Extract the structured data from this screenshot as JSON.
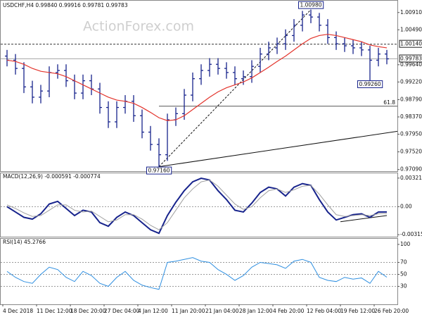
{
  "chart_data": [
    {
      "type": "ohlc",
      "title": "USDCHF,H4  0.99840 0.99916 0.99781 0.99783",
      "watermark": "ActionForex.com",
      "categories": [
        "4 Dec 2018",
        null,
        null,
        null,
        "11 Dec 12:00",
        null,
        null,
        null,
        "18 Dec 20:00",
        null,
        null,
        null,
        "27 Dec 04:00",
        null,
        null,
        null,
        "4 Jan 12:00",
        null,
        null,
        null,
        "11 Jan 20:00",
        null,
        null,
        null,
        "21 Jan 04:00",
        null,
        null,
        null,
        "28 Jan 12:00",
        null,
        null,
        null,
        "4 Feb 20:00",
        null,
        null,
        null,
        "12 Feb 04:00",
        null,
        null,
        null,
        "19 Feb 12:00",
        null,
        null,
        null,
        "26 Feb 20:00",
        null
      ],
      "open": [
        0.9985,
        0.9975,
        0.9955,
        0.991,
        0.9885,
        0.99,
        0.9945,
        0.995,
        0.9925,
        0.9895,
        0.9925,
        0.9905,
        0.986,
        0.9825,
        0.986,
        0.9875,
        0.984,
        0.98,
        0.977,
        0.9745,
        0.983,
        0.9845,
        0.989,
        0.993,
        0.995,
        0.9965,
        0.9955,
        0.9945,
        0.993,
        0.9935,
        0.996,
        0.999,
        1.0005,
        1.0015,
        1.0035,
        1.006,
        1.0085,
        1.008,
        1.006,
        1.003,
        1.0015,
        1.001,
        1.0005,
        1.0,
        0.9975,
        0.999
      ],
      "high": [
        1.0,
        0.999,
        0.997,
        0.9925,
        0.9915,
        0.996,
        0.9965,
        0.9965,
        0.994,
        0.994,
        0.994,
        0.992,
        0.9875,
        0.9875,
        0.989,
        0.989,
        0.9855,
        0.9815,
        0.9785,
        0.9845,
        0.986,
        0.9905,
        0.9945,
        0.9965,
        0.998,
        0.998,
        0.997,
        0.996,
        0.995,
        0.9975,
        1.0005,
        1.002,
        1.003,
        1.005,
        1.0075,
        1.0095,
        1.0098,
        1.009,
        1.0075,
        1.0045,
        1.003,
        1.0025,
        1.002,
        1.001,
        1.0005,
        1.0
      ],
      "low": [
        0.996,
        0.994,
        0.9895,
        0.987,
        0.987,
        0.9885,
        0.993,
        0.991,
        0.988,
        0.988,
        0.989,
        0.9845,
        0.981,
        0.981,
        0.9845,
        0.9825,
        0.9785,
        0.9755,
        0.9716,
        0.973,
        0.9815,
        0.983,
        0.9875,
        0.9915,
        0.9935,
        0.994,
        0.993,
        0.9915,
        0.9915,
        0.992,
        0.9945,
        0.9975,
        0.999,
        1.0,
        1.002,
        1.0045,
        1.0065,
        1.0045,
        1.0015,
        1.0,
        0.9995,
        0.999,
        0.9985,
        0.9926,
        0.996,
        0.9965
      ],
      "close": [
        0.9975,
        0.9955,
        0.991,
        0.9885,
        0.99,
        0.9945,
        0.995,
        0.9925,
        0.9895,
        0.9925,
        0.9905,
        0.986,
        0.9825,
        0.986,
        0.9875,
        0.984,
        0.98,
        0.977,
        0.9745,
        0.983,
        0.9845,
        0.989,
        0.993,
        0.995,
        0.9965,
        0.9955,
        0.9945,
        0.993,
        0.9935,
        0.996,
        0.999,
        1.0005,
        1.0015,
        1.0035,
        1.006,
        1.0085,
        1.008,
        1.006,
        1.003,
        1.0015,
        1.001,
        1.0005,
        1.0,
        0.9975,
        0.999,
        0.99783
      ],
      "color": "#17238c",
      "ma": {
        "color": "#e3342c",
        "values": [
          0.9975,
          0.9972,
          0.9965,
          0.9955,
          0.9948,
          0.9945,
          0.9942,
          0.9935,
          0.9925,
          0.9915,
          0.9905,
          0.9895,
          0.9885,
          0.9878,
          0.9875,
          0.987,
          0.986,
          0.9848,
          0.9835,
          0.9828,
          0.983,
          0.984,
          0.9855,
          0.987,
          0.9885,
          0.9898,
          0.9908,
          0.9915,
          0.9922,
          0.9932,
          0.9945,
          0.9958,
          0.9972,
          0.9985,
          1.0,
          1.0015,
          1.0028,
          1.0035,
          1.0038,
          1.0035,
          1.003,
          1.0025,
          1.002,
          1.0012,
          1.0008,
          1.0005
        ]
      },
      "ylim": [
        0.9705,
        1.0118
      ],
      "yticks": [
        {
          "value": 1.0091,
          "label": "1.00910"
        },
        {
          "value": 1.0049,
          "label": "1.00490"
        },
        {
          "value": 0.9964,
          "label": "0.99640"
        },
        {
          "value": 0.9922,
          "label": "0.99220"
        },
        {
          "value": 0.9879,
          "label": "0.98790"
        },
        {
          "value": 0.9837,
          "label": "0.98370"
        },
        {
          "value": 0.9795,
          "label": "0.97950"
        },
        {
          "value": 0.9752,
          "label": "0.97520"
        },
        {
          "value": 0.9709,
          "label": "0.97090"
        }
      ],
      "level": {
        "value": 1.0014,
        "label": "1.00140"
      },
      "last": {
        "value": 0.99783,
        "label": "0.99783"
      },
      "annotations": [
        {
          "x": 36,
          "value": 1.0098,
          "label": "1.00980"
        },
        {
          "x": 43,
          "value": 0.9926,
          "label": "0.99260"
        },
        {
          "x": 18,
          "value": 0.9716,
          "label": "0.97160"
        }
      ],
      "fib": {
        "label": 61.8,
        "value": 0.9863,
        "x": 18
      },
      "trendlines": [
        {
          "x": [
            18,
            36
          ],
          "y": [
            0.9716,
            1.0098
          ],
          "dashed": true
        },
        {
          "x": [
            18,
            46.5
          ],
          "y": [
            0.9716,
            0.9802
          ],
          "dashed": false
        }
      ]
    },
    {
      "type": "line",
      "title": "MACD(12,26,9) -0.000591 -0.000774",
      "series": [
        {
          "color": "#17238c",
          "width": 2,
          "values": [
            0.0,
            -0.0006,
            -0.0012,
            -0.0014,
            -0.0008,
            0.0003,
            0.0006,
            -0.0002,
            -0.001,
            -0.0004,
            -0.0006,
            -0.0018,
            -0.0022,
            -0.0012,
            -0.0006,
            -0.001,
            -0.0018,
            -0.0026,
            -0.003,
            -0.001,
            0.0005,
            0.0018,
            0.0028,
            0.0032,
            0.003,
            0.0018,
            0.0008,
            -0.0004,
            -0.0006,
            0.0004,
            0.0016,
            0.0022,
            0.002,
            0.0012,
            0.0022,
            0.0026,
            0.0024,
            0.0008,
            -0.0006,
            -0.0015,
            -0.0012,
            -0.0009,
            -0.0008,
            -0.0012,
            -0.0006,
            -0.000591
          ]
        },
        {
          "color": "#a0a0a0",
          "width": 1,
          "values": [
            0.0002,
            -0.0002,
            -0.0007,
            -0.0011,
            -0.001,
            -0.0004,
            0.0002,
            0.0002,
            -0.0004,
            -0.0006,
            -0.0005,
            -0.0011,
            -0.0017,
            -0.0015,
            -0.0009,
            -0.0009,
            -0.0014,
            -0.0021,
            -0.0026,
            -0.0018,
            -0.0004,
            0.001,
            0.002,
            0.0028,
            0.003,
            0.0023,
            0.0013,
            0.0003,
            -0.0003,
            0.0,
            0.001,
            0.0018,
            0.002,
            0.0016,
            0.0019,
            0.0023,
            0.0024,
            0.0014,
            0.0002,
            -0.0009,
            -0.0011,
            -0.001,
            -0.0009,
            -0.001,
            -0.0008,
            -0.000774
          ]
        }
      ],
      "ylim": [
        -0.00338,
        0.00368
      ],
      "yticks": [
        0.003219,
        {
          "value": 0,
          "label": "0.00"
        },
        -0.003153
      ],
      "levels": [
        0
      ],
      "trendlines": [
        {
          "x": [
            39.5,
            45
          ],
          "y": [
            -0.00169,
            -0.001
          ],
          "dashed": false
        }
      ]
    },
    {
      "type": "line",
      "title": "RSI(14) 45.2766",
      "series": [
        {
          "color": "#2f8fe0",
          "width": 1,
          "values": [
            55,
            45,
            38,
            35,
            50,
            62,
            58,
            45,
            38,
            55,
            48,
            35,
            30,
            45,
            55,
            40,
            32,
            28,
            25,
            70,
            72,
            75,
            78,
            72,
            70,
            58,
            50,
            40,
            48,
            62,
            70,
            68,
            66,
            60,
            72,
            75,
            70,
            45,
            40,
            38,
            45,
            42,
            44,
            35,
            55,
            45.2766
          ]
        }
      ],
      "ylim": [
        0,
        107
      ],
      "yticks": [
        100,
        70,
        50,
        30
      ],
      "levels": [
        70,
        50,
        30
      ]
    }
  ]
}
